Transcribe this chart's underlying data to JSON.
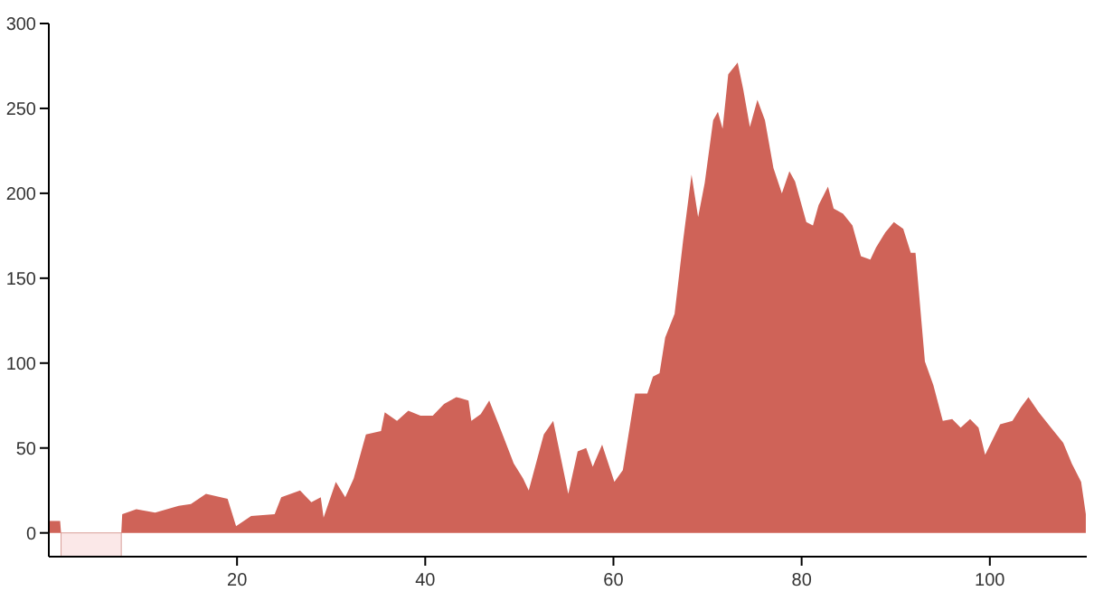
{
  "chart_data": {
    "type": "area",
    "xlim": [
      0,
      110.3
    ],
    "ylim": [
      -14,
      300
    ],
    "xticks": [
      20,
      40,
      60,
      80,
      100
    ],
    "yticks": [
      0,
      50,
      100,
      150,
      200,
      250,
      300
    ],
    "grid": false,
    "bands": [
      {
        "axis": "x",
        "from": 1.3,
        "to": 7.7,
        "color": "#fbe8e8"
      }
    ],
    "series": [
      {
        "color": "#cf6358",
        "x": [
          0,
          1.2,
          1.3,
          7.7,
          7.8,
          9.3,
          11.3,
          13.8,
          15.1,
          16.7,
          19,
          19.9,
          21.5,
          24,
          24.7,
          26.7,
          27.9,
          28.9,
          29.2,
          30.5,
          31.5,
          32.4,
          33.7,
          35.3,
          35.7,
          37,
          38.2,
          39.5,
          40.8,
          42,
          43.3,
          44.6,
          44.9,
          45.9,
          46.8,
          47.8,
          49.4,
          50.4,
          51,
          52.6,
          53.6,
          55.2,
          56.2,
          57.1,
          57.8,
          58.8,
          60.1,
          61,
          62.3,
          63.6,
          64.2,
          64.9,
          65.5,
          66.5,
          67.4,
          68.3,
          69,
          69.7,
          70.6,
          71.1,
          71.6,
          72.2,
          73.2,
          73.8,
          74.5,
          75.3,
          76.1,
          77,
          77.9,
          78.7,
          79.3,
          80.5,
          81.2,
          81.8,
          82.8,
          83.4,
          84.4,
          85.4,
          86.3,
          87.3,
          87.9,
          88.9,
          89.8,
          90.8,
          91.6,
          92.1,
          93.1,
          94,
          95,
          96,
          96.9,
          97.9,
          98.8,
          99.5,
          101.1,
          102.4,
          103.3,
          104.1,
          105.2,
          106.5,
          107.8,
          108.7,
          109.7,
          110.2
        ],
        "values": [
          7,
          7,
          0,
          0,
          11,
          14,
          12,
          16,
          17,
          23,
          20,
          4,
          10,
          11,
          21,
          25,
          18,
          21,
          9,
          30,
          21,
          32,
          58,
          60,
          71,
          66,
          72,
          69,
          69,
          76,
          80,
          78,
          66,
          70,
          78,
          64,
          41,
          32,
          25,
          58,
          66,
          23,
          48,
          50,
          39,
          52,
          30,
          37,
          82,
          82,
          92,
          94,
          115,
          129,
          172,
          211,
          186,
          206,
          243,
          248,
          238,
          270,
          277,
          261,
          239,
          255,
          243,
          215,
          200,
          213,
          207,
          183,
          181,
          193,
          204,
          191,
          188,
          181,
          163,
          161,
          168,
          177,
          183,
          179,
          165,
          165,
          101,
          87,
          66,
          67,
          62,
          67,
          62,
          46,
          64,
          66,
          74,
          80,
          71,
          62,
          53,
          41,
          30,
          11
        ]
      }
    ]
  }
}
